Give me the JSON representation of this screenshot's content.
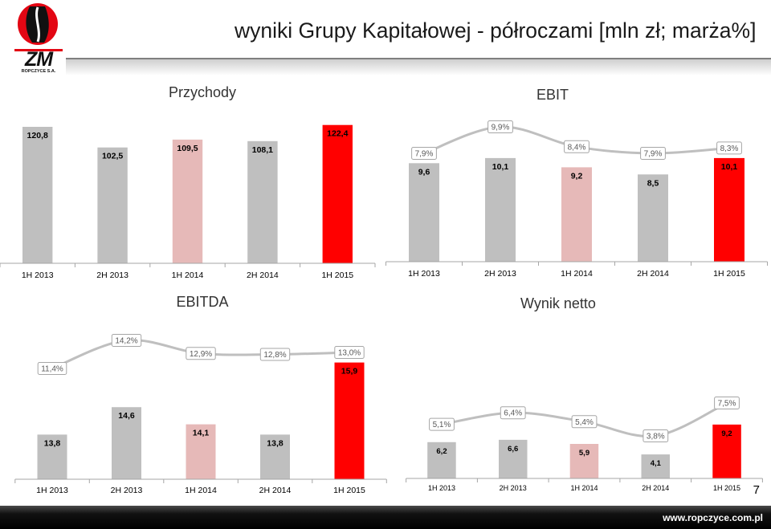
{
  "header": {
    "title": "wyniki Grupy Kapitałowej - półroczami [mln zł; marża%]",
    "logo": {
      "mark": "ZM",
      "company": "ROPCZYCE S.A."
    }
  },
  "colors": {
    "bar_gray": "#BFBFBF",
    "bar_pink": "#E6B9B8",
    "bar_red": "#FF0000",
    "margin_line": "#BFBFBF",
    "margin_label_border": "#A6A6A6",
    "axis": "#A6A6A6",
    "brand_red": "#E30613",
    "footer_bg": "#000000"
  },
  "chart_data": [
    {
      "type": "bar",
      "title": "Przychody",
      "categories": [
        "1H 2013",
        "2H 2013",
        "1H 2014",
        "2H 2014",
        "1H 2015"
      ],
      "values": [
        120.8,
        102.5,
        109.5,
        108.1,
        122.4
      ],
      "ylim": [
        0,
        130
      ],
      "bar_colors": [
        "#BFBFBF",
        "#BFBFBF",
        "#E6B9B8",
        "#BFBFBF",
        "#FF0000"
      ]
    },
    {
      "type": "bar",
      "title": "EBIT",
      "categories": [
        "1H 2013",
        "2H 2013",
        "1H 2014",
        "2H 2014",
        "1H 2015"
      ],
      "values": [
        9.6,
        10.1,
        9.2,
        8.5,
        10.1
      ],
      "ylim": [
        0,
        14
      ],
      "bar_colors": [
        "#BFBFBF",
        "#BFBFBF",
        "#E6B9B8",
        "#BFBFBF",
        "#FF0000"
      ],
      "margin_pct": [
        7.9,
        9.9,
        8.4,
        7.9,
        8.3
      ]
    },
    {
      "type": "bar",
      "title": "EBITDA",
      "categories": [
        "1H 2013",
        "2H 2013",
        "1H 2014",
        "2H 2014",
        "1H 2015"
      ],
      "values": [
        13.8,
        14.6,
        14.1,
        13.8,
        15.9
      ],
      "ylim": [
        12.5,
        16.5
      ],
      "bar_colors": [
        "#BFBFBF",
        "#BFBFBF",
        "#E6B9B8",
        "#BFBFBF",
        "#FF0000"
      ],
      "margin_pct": [
        11.4,
        14.2,
        12.9,
        12.8,
        13.0
      ]
    },
    {
      "type": "bar",
      "title": "Wynik netto",
      "categories": [
        "1H 2013",
        "2H 2013",
        "1H 2014",
        "2H 2014",
        "1H 2015"
      ],
      "values": [
        6.2,
        6.6,
        5.9,
        4.1,
        9.2
      ],
      "ylim": [
        0,
        24
      ],
      "bar_colors": [
        "#BFBFBF",
        "#BFBFBF",
        "#E6B9B8",
        "#BFBFBF",
        "#FF0000"
      ],
      "margin_pct": [
        5.1,
        6.4,
        5.4,
        3.8,
        7.5
      ]
    }
  ],
  "footer": {
    "url": "www.ropczyce.com.pl",
    "page_number": "7"
  }
}
